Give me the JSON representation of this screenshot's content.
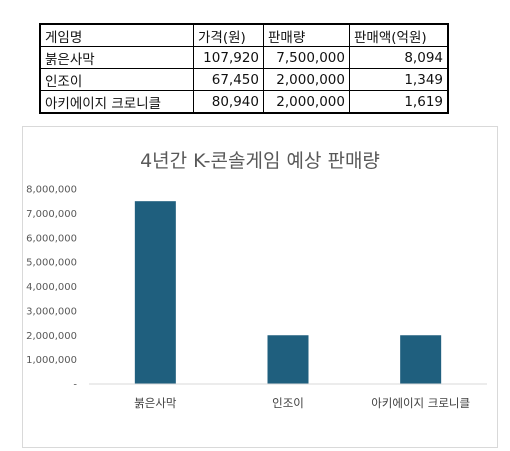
{
  "table": {
    "headers": [
      "게임명",
      "가격(원)",
      "판매량",
      "판매액(억원)"
    ],
    "rows": [
      [
        "붉은사막",
        "107,920",
        "7,500,000",
        "8,094"
      ],
      [
        "인조이",
        "67,450",
        "2,000,000",
        "1,349"
      ],
      [
        "아키에이지 크로니클",
        "80,940",
        "2,000,000",
        "1,619"
      ]
    ]
  },
  "chart_data": {
    "type": "bar",
    "title": "4년간 K-콘솔게임 예상 판매량",
    "categories": [
      "붉은사막",
      "인조이",
      "아키에이지 크로니클"
    ],
    "values": [
      7500000,
      2000000,
      2000000
    ],
    "ylim": [
      0,
      8000000
    ],
    "yticks": [
      "-",
      "1,000,000",
      "2,000,000",
      "3,000,000",
      "4,000,000",
      "5,000,000",
      "6,000,000",
      "7,000,000",
      "8,000,000"
    ],
    "grid": false,
    "bar_color": "#1f5f7e"
  }
}
